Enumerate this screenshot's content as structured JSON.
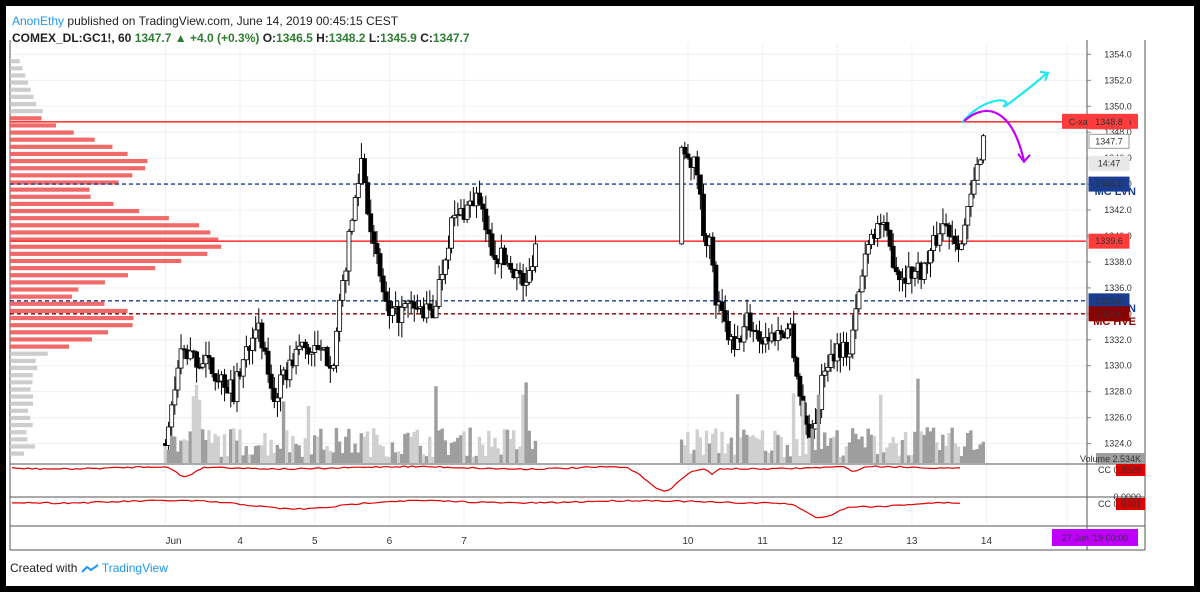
{
  "header": {
    "author": "AnonEthy",
    "published": "published on TradingView.com, June 14, 2019 00:45:15 CEST",
    "symbol": "COMEX_DL:GC1!, 60",
    "last": "1347.7",
    "change": "+4.0 (+0.3%)",
    "open_label": "O:",
    "open": "1346.5",
    "high_label": "H:",
    "high": "1348.2",
    "low_label": "L:",
    "low": "1345.9",
    "close_label": "C:",
    "close": "1347.7"
  },
  "footer": {
    "created_with": "Created with",
    "brand": "TradingView"
  },
  "colors": {
    "up": "#ffffff",
    "down": "#000000",
    "candle_outline": "#000000",
    "hvn_line": "#ff3b3b",
    "lvn_line": "#1a3d8f",
    "hve_line": "#8b0000",
    "profile_red": "#f05a5a",
    "profile_gray": "#c8c8c8",
    "cc_line": "#e00000",
    "cyan_arrow": "#1ee8f0",
    "magenta_arrow": "#c000ff"
  },
  "chart_data": {
    "type": "candlestick",
    "timeframe": "60",
    "y_range": [
      1322.5,
      1354.8
    ],
    "x_range": [
      "2019-05-31 22:00",
      "2019-06-15 08:00"
    ],
    "price_ticks": [
      "1354.0",
      "1352.0",
      "1350.0",
      "1348.0",
      "1346.0",
      "1344.0",
      "1342.0",
      "1340.0",
      "1338.0",
      "1336.0",
      "1334.0",
      "1332.0",
      "1330.0",
      "1328.0",
      "1326.0",
      "1324.0"
    ],
    "date_ticks": [
      {
        "label": "Jun",
        "time": "2019-06-03 00:00"
      },
      {
        "label": "4",
        "time": "2019-06-04 00:00"
      },
      {
        "label": "5",
        "time": "2019-06-05 00:00"
      },
      {
        "label": "6",
        "time": "2019-06-06 00:00"
      },
      {
        "label": "7",
        "time": "2019-06-07 00:00"
      },
      {
        "label": "10",
        "time": "2019-06-10 00:00"
      },
      {
        "label": "11",
        "time": "2019-06-11 00:00"
      },
      {
        "label": "12",
        "time": "2019-06-12 00:00"
      },
      {
        "label": "13",
        "time": "2019-06-13 00:00"
      },
      {
        "label": "14",
        "time": "2019-06-14 00:00"
      }
    ],
    "key_points": [
      {
        "time": "2019-06-03 00:00",
        "price": 1324.0
      },
      {
        "time": "2019-06-03 05:00",
        "price": 1331.0
      },
      {
        "time": "2019-06-03 14:00",
        "price": 1330.0
      },
      {
        "time": "2019-06-03 22:00",
        "price": 1328.0
      },
      {
        "time": "2019-06-04 05:00",
        "price": 1333.5
      },
      {
        "time": "2019-06-04 11:00",
        "price": 1327.5
      },
      {
        "time": "2019-06-04 19:00",
        "price": 1331.5
      },
      {
        "time": "2019-06-05 06:00",
        "price": 1330.5
      },
      {
        "time": "2019-06-05 10:00",
        "price": 1338.0
      },
      {
        "time": "2019-06-05 15:00",
        "price": 1346.0
      },
      {
        "time": "2019-06-05 19:00",
        "price": 1339.0
      },
      {
        "time": "2019-06-06 00:00",
        "price": 1333.5
      },
      {
        "time": "2019-06-06 06:00",
        "price": 1334.5
      },
      {
        "time": "2019-06-06 14:00",
        "price": 1334.0
      },
      {
        "time": "2019-06-06 20:00",
        "price": 1341.0
      },
      {
        "time": "2019-06-07 04:00",
        "price": 1343.0
      },
      {
        "time": "2019-06-07 09:00",
        "price": 1339.0
      },
      {
        "time": "2019-06-07 16:00",
        "price": 1337.5
      },
      {
        "time": "2019-06-07 20:00",
        "price": 1336.0
      },
      {
        "time": "2019-06-07 23:00",
        "price": 1339.5
      },
      {
        "time": "2019-06-09 23:00",
        "price": 1347.0
      },
      {
        "time": "2019-06-10 03:00",
        "price": 1345.0
      },
      {
        "time": "2019-06-10 05:00",
        "price": 1340.5
      },
      {
        "time": "2019-06-10 07:00",
        "price": 1339.5
      },
      {
        "time": "2019-06-10 09:00",
        "price": 1335.0
      },
      {
        "time": "2019-06-10 15:00",
        "price": 1331.0
      },
      {
        "time": "2019-06-10 19:00",
        "price": 1333.5
      },
      {
        "time": "2019-06-11 00:00",
        "price": 1332.0
      },
      {
        "time": "2019-06-11 05:00",
        "price": 1332.5
      },
      {
        "time": "2019-06-11 09:00",
        "price": 1333.0
      },
      {
        "time": "2019-06-11 13:00",
        "price": 1326.0
      },
      {
        "time": "2019-06-11 16:00",
        "price": 1324.5
      },
      {
        "time": "2019-06-11 20:00",
        "price": 1330.0
      },
      {
        "time": "2019-06-12 00:00",
        "price": 1331.5
      },
      {
        "time": "2019-06-12 04:00",
        "price": 1331.0
      },
      {
        "time": "2019-06-12 10:00",
        "price": 1340.0
      },
      {
        "time": "2019-06-12 14:00",
        "price": 1341.0
      },
      {
        "time": "2019-06-12 20:00",
        "price": 1337.0
      },
      {
        "time": "2019-06-13 04:00",
        "price": 1337.5
      },
      {
        "time": "2019-06-13 10:00",
        "price": 1341.0
      },
      {
        "time": "2019-06-13 16:00",
        "price": 1339.5
      },
      {
        "time": "2019-06-13 20:00",
        "price": 1344.0
      },
      {
        "time": "2019-06-13 23:00",
        "price": 1347.7
      }
    ],
    "horizontal_levels": [
      {
        "name": "C-xau:HVN Top",
        "price": 1348.8,
        "style": "solid",
        "color": "#ff3b3b",
        "label_style": "box"
      },
      {
        "name": "MC LVN",
        "price": 1344.0,
        "style": "dashed",
        "color": "#1a3d8f",
        "label_style": "text"
      },
      {
        "name": "",
        "price": 1339.6,
        "style": "solid",
        "color": "#ff3b3b",
        "label_style": "none"
      },
      {
        "name": "MC LVN",
        "price": 1335.0,
        "style": "dashed",
        "color": "#1a3d8f",
        "label_style": "text"
      },
      {
        "name": "MC HVE",
        "price": 1334.0,
        "style": "dashed",
        "color": "#8b0000",
        "label_style": "text"
      }
    ],
    "price_labels": [
      {
        "text": "1348.8",
        "price": 1348.8,
        "bg": "#ff3b3b",
        "fg": "#ffffff"
      },
      {
        "text": "1347.7",
        "price": 1347.3,
        "bg": "#ffffff",
        "fg": "#000000"
      },
      {
        "text": "14:47",
        "price": 1345.6,
        "bg": "#e8e8e8",
        "fg": "#000000"
      },
      {
        "text": "1344.0",
        "price": 1344.0,
        "bg": "#1a3d8f",
        "fg": "#ffffff"
      },
      {
        "text": "1339.6",
        "price": 1339.6,
        "bg": "#ff3b3b",
        "fg": "#ffffff"
      },
      {
        "text": "1335.0",
        "price": 1335.0,
        "bg": "#1a3d8f",
        "fg": "#ffffff"
      },
      {
        "text": "1334.0",
        "price": 1334.0,
        "bg": "#8b0000",
        "fg": "#ffffff"
      }
    ],
    "volume": {
      "label": "Volume",
      "value": "2.534K"
    },
    "cc_indicators": [
      {
        "label": "CC",
        "value": "0.9528",
        "color": "#e00000"
      },
      {
        "label": "CC",
        "value": "0.9301",
        "color": "#e00000"
      }
    ],
    "cc_zero_label": "0.0000",
    "forecast_arrows": [
      {
        "color": "#1ee8f0",
        "direction": "up",
        "end_price": 1352.5
      },
      {
        "color": "#c000ff",
        "direction": "down",
        "end_price": 1345.8
      }
    ],
    "time_badge": {
      "text": "27 Jun '19   00:00",
      "bg": "#c000ff",
      "fg": "#ffffff"
    }
  }
}
